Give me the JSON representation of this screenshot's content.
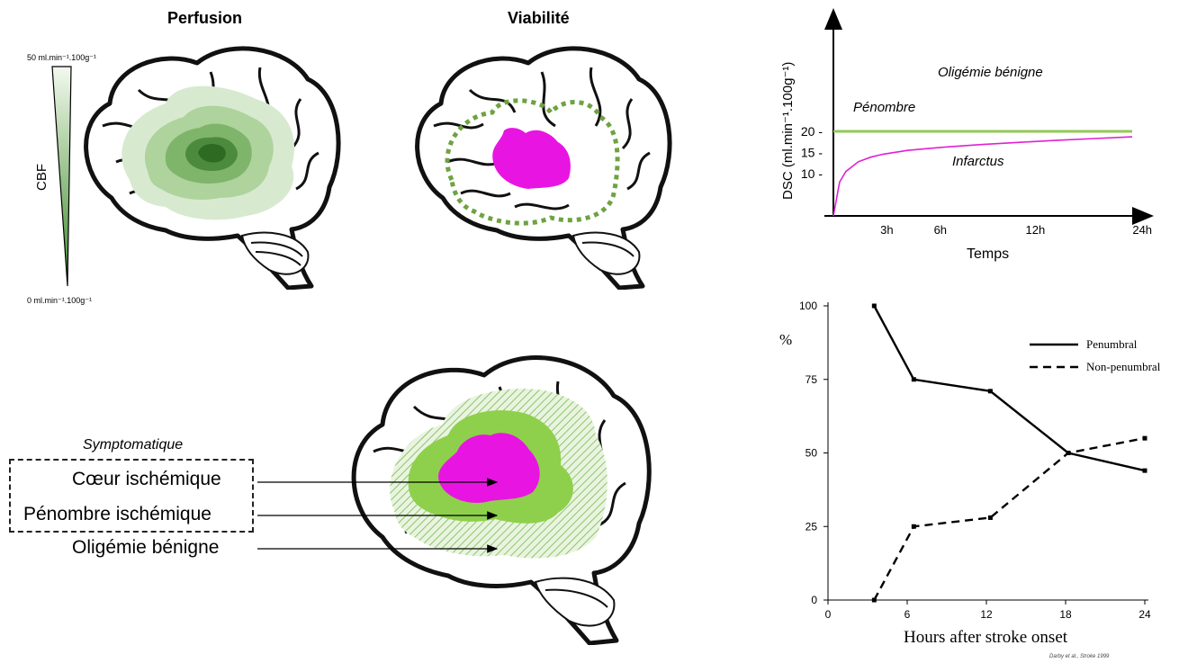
{
  "titles": {
    "perfusion": "Perfusion",
    "viability": "Viabilité"
  },
  "cbf_scale": {
    "top": "50 ml.min⁻¹.100g⁻¹",
    "bottom": "0 ml.min⁻¹.100g⁻¹",
    "axis_label": "CBF"
  },
  "legend": {
    "title": "Symptomatique",
    "items": [
      "Cœur ischémique",
      "Pénombre ischémique",
      "Oligémie bénigne"
    ]
  },
  "colors": {
    "core": "#e815e2",
    "penumbra": "#8ed04b",
    "oligemia": "#b9dca0",
    "perfusion_dark": "#2f6a22",
    "line_green": "#92c954",
    "line_magenta": "#e020d4"
  },
  "chart_data": [
    {
      "type": "line",
      "title": "",
      "xlabel": "Temps",
      "ylabel": "DSC (ml.min⁻¹.100g⁻¹)",
      "x_ticks": [
        "3h",
        "6h",
        "12h",
        "24h"
      ],
      "y_ticks": [
        "10",
        "15",
        "20"
      ],
      "region_labels": [
        "Oligémie bénigne",
        "Pénombre",
        "Infarctus"
      ],
      "series": [
        {
          "x": [
            0,
            24
          ],
          "y": [
            20,
            20
          ]
        },
        {
          "x": [
            0,
            0.5,
            1,
            2,
            3,
            4,
            6,
            9,
            12,
            15,
            18,
            21,
            24
          ],
          "y": [
            0,
            8,
            10.5,
            12.8,
            13.9,
            14.6,
            15.5,
            16.3,
            16.9,
            17.4,
            17.9,
            18.3,
            18.7
          ]
        }
      ]
    },
    {
      "type": "line",
      "xlabel": "Hours after stroke onset",
      "ylabel": "%",
      "x_ticks": [
        "0",
        "6",
        "12",
        "18",
        "24"
      ],
      "y_ticks": [
        "0",
        "25",
        "50",
        "75",
        "100"
      ],
      "xlim": [
        0,
        24
      ],
      "ylim": [
        0,
        100
      ],
      "legend_position": "top-right",
      "series": [
        {
          "name": "Penumbral",
          "style": "solid",
          "x": [
            3.5,
            6.5,
            12.3,
            18.2,
            24
          ],
          "y": [
            100,
            75,
            71,
            50,
            44
          ]
        },
        {
          "name": "Non-penumbral",
          "style": "dashed",
          "x": [
            3.5,
            6.5,
            12.3,
            18.2,
            24
          ],
          "y": [
            0,
            25,
            28,
            50,
            55
          ]
        }
      ],
      "credit": "Darby et al., Stroke 1999"
    }
  ]
}
